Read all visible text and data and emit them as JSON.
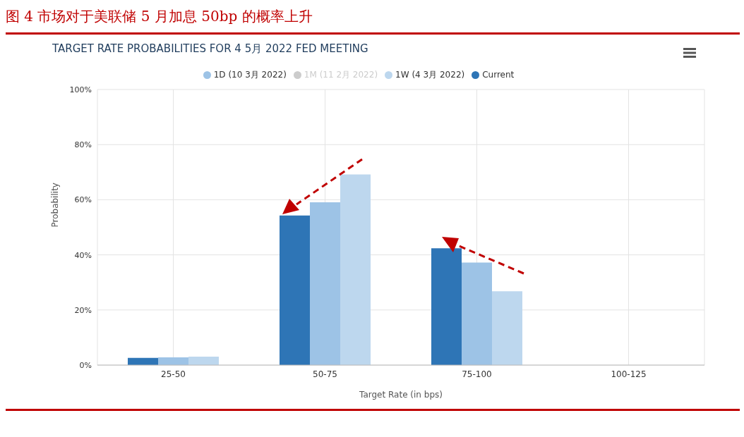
{
  "chart_data": {
    "type": "bar",
    "title": "图 4  市场对于美联储 5 月加息 50bp 的概率上升",
    "subtitle": "TARGET RATE PROBABILITIES FOR 4 5月 2022 FED MEETING",
    "xlabel": "Target Rate (in bps)",
    "ylabel": "Probability",
    "categories": [
      "25-50",
      "50-75",
      "75-100",
      "100-125"
    ],
    "series": [
      {
        "name": "Current",
        "color": "#2e75b6",
        "values": [
          2.6,
          54.3,
          42.4,
          0
        ]
      },
      {
        "name": "1D (10 3月 2022)",
        "color": "#9dc3e6",
        "values": [
          2.8,
          59.1,
          37.2,
          0
        ]
      },
      {
        "name": "1W (4 3月 2022)",
        "color": "#bdd7ee",
        "values": [
          3.1,
          69.2,
          26.8,
          0
        ]
      },
      {
        "name": "1M (11 2月 2022)",
        "color": "#cccccc",
        "values": [
          null,
          null,
          null,
          null
        ]
      }
    ],
    "ylim": [
      0,
      100
    ],
    "yticks": [
      {
        "value": 0,
        "label": "0%"
      },
      {
        "value": 20,
        "label": "20%"
      },
      {
        "value": 40,
        "label": "40%"
      },
      {
        "value": 60,
        "label": "60%"
      },
      {
        "value": 80,
        "label": "80%"
      },
      {
        "value": 100,
        "label": "100%"
      }
    ],
    "grid": true,
    "legend": "top"
  }
}
